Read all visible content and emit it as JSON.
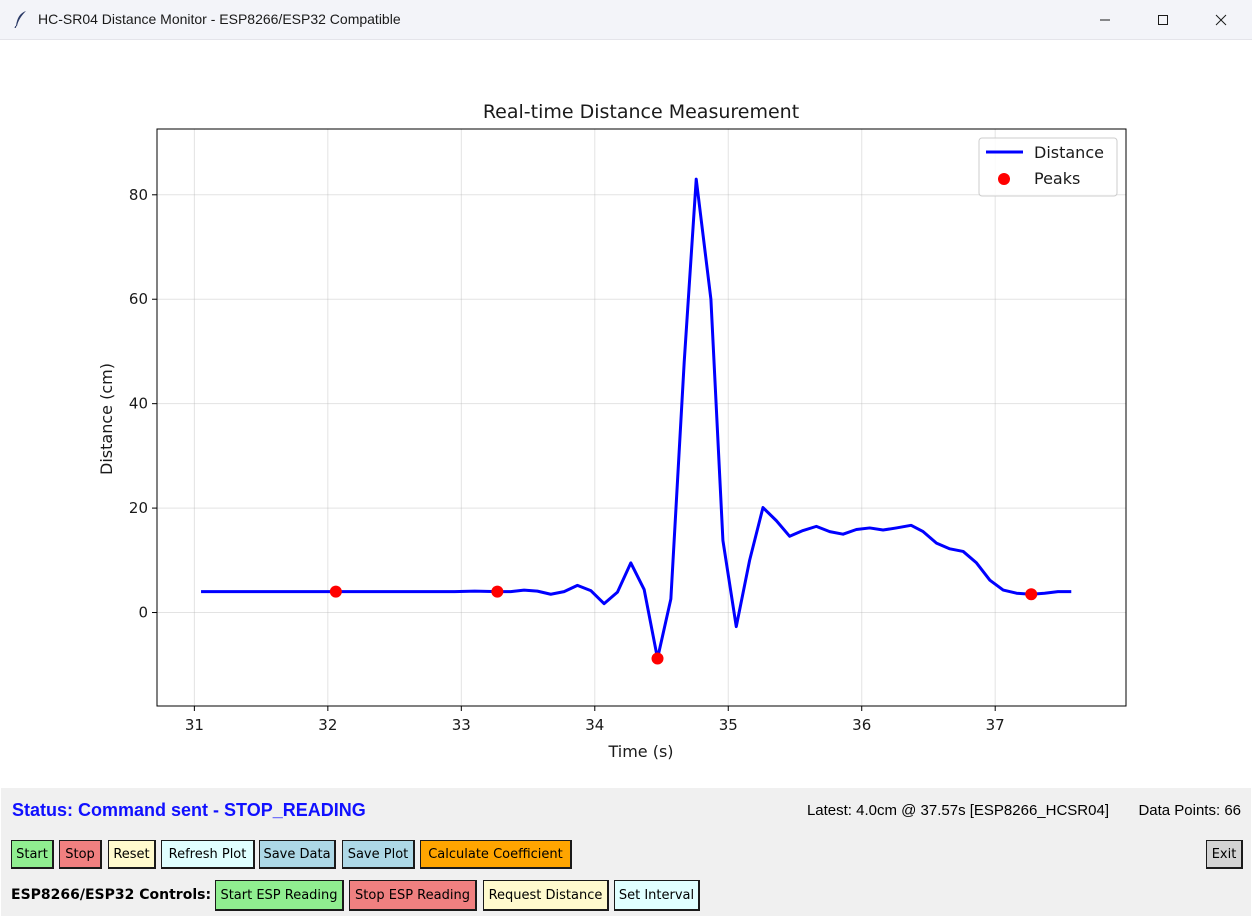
{
  "window": {
    "title": "HC-SR04 Distance Monitor - ESP8266/ESP32 Compatible",
    "app_icon": "feather-icon"
  },
  "chart_data": {
    "type": "line",
    "title": "Real-time Distance Measurement",
    "xlabel": "Time (s)",
    "ylabel": "Distance (cm)",
    "xlim": [
      30.72,
      37.98
    ],
    "ylim": [
      -17.9,
      92.6
    ],
    "xticks": [
      31,
      32,
      33,
      34,
      35,
      36,
      37
    ],
    "yticks": [
      0,
      20,
      40,
      60,
      80
    ],
    "grid": true,
    "legend_position": "top-right",
    "series": [
      {
        "name": "Distance",
        "color": "#0000ff",
        "x": [
          31.05,
          31.2,
          31.4,
          31.6,
          31.8,
          32.0,
          32.06,
          32.2,
          32.4,
          32.6,
          32.8,
          32.95,
          33.1,
          33.27,
          33.37,
          33.47,
          33.57,
          33.67,
          33.77,
          33.87,
          33.97,
          34.07,
          34.17,
          34.27,
          34.37,
          34.47,
          34.57,
          34.67,
          34.76,
          34.87,
          34.96,
          35.06,
          35.16,
          35.26,
          35.36,
          35.46,
          35.56,
          35.66,
          35.76,
          35.86,
          35.96,
          36.06,
          36.16,
          36.26,
          36.37,
          36.46,
          36.56,
          36.66,
          36.76,
          36.86,
          36.96,
          37.06,
          37.16,
          37.27,
          37.37,
          37.47,
          37.57
        ],
        "y": [
          4.0,
          4.0,
          4.0,
          4.0,
          4.0,
          4.0,
          4.0,
          4.0,
          4.0,
          4.0,
          4.0,
          4.0,
          4.1,
          4.0,
          4.0,
          4.3,
          4.1,
          3.5,
          4.0,
          5.2,
          4.2,
          1.7,
          3.9,
          9.5,
          4.4,
          -8.8,
          2.6,
          48.0,
          83.0,
          60.0,
          13.8,
          -2.7,
          10.0,
          20.1,
          17.6,
          14.6,
          15.7,
          16.5,
          15.5,
          15.0,
          15.9,
          16.2,
          15.8,
          16.2,
          16.7,
          15.5,
          13.3,
          12.2,
          11.7,
          9.5,
          6.2,
          4.3,
          3.7,
          3.5,
          3.7,
          4.0,
          4.0
        ]
      },
      {
        "name": "Peaks",
        "color": "#ff0000",
        "x": [
          32.06,
          33.27,
          34.47,
          37.27
        ],
        "y": [
          4.0,
          4.0,
          -8.8,
          3.5
        ]
      }
    ]
  },
  "status": {
    "message": "Status: Command sent - STOP_READING",
    "latest": "Latest: 4.0cm @ 37.57s [ESP8266_HCSR04]",
    "data_points": "Data Points: 66"
  },
  "controls": {
    "start": "Start",
    "stop": "Stop",
    "reset": "Reset",
    "refresh_plot": "Refresh Plot",
    "save_data": "Save Data",
    "save_plot": "Save Plot",
    "calculate_coefficient": "Calculate Coefficient",
    "exit": "Exit"
  },
  "esp_controls": {
    "label": "ESP8266/ESP32 Controls:",
    "start_reading": "Start ESP Reading",
    "stop_reading": "Stop ESP Reading",
    "request_distance": "Request Distance",
    "set_interval": "Set Interval"
  },
  "colors": {
    "start": "#90ee90",
    "stop": "#f08080",
    "reset": "#fffacd",
    "refresh_plot": "#e0ffff",
    "save_data": "#add8e6",
    "save_plot": "#add8e6",
    "calculate_coefficient": "#ffa500",
    "exit": "#d3d3d3",
    "esp_start": "#90ee90",
    "esp_stop": "#f08080",
    "esp_request": "#fffacd",
    "esp_interval": "#e0ffff",
    "status_text": "#1010ff"
  }
}
